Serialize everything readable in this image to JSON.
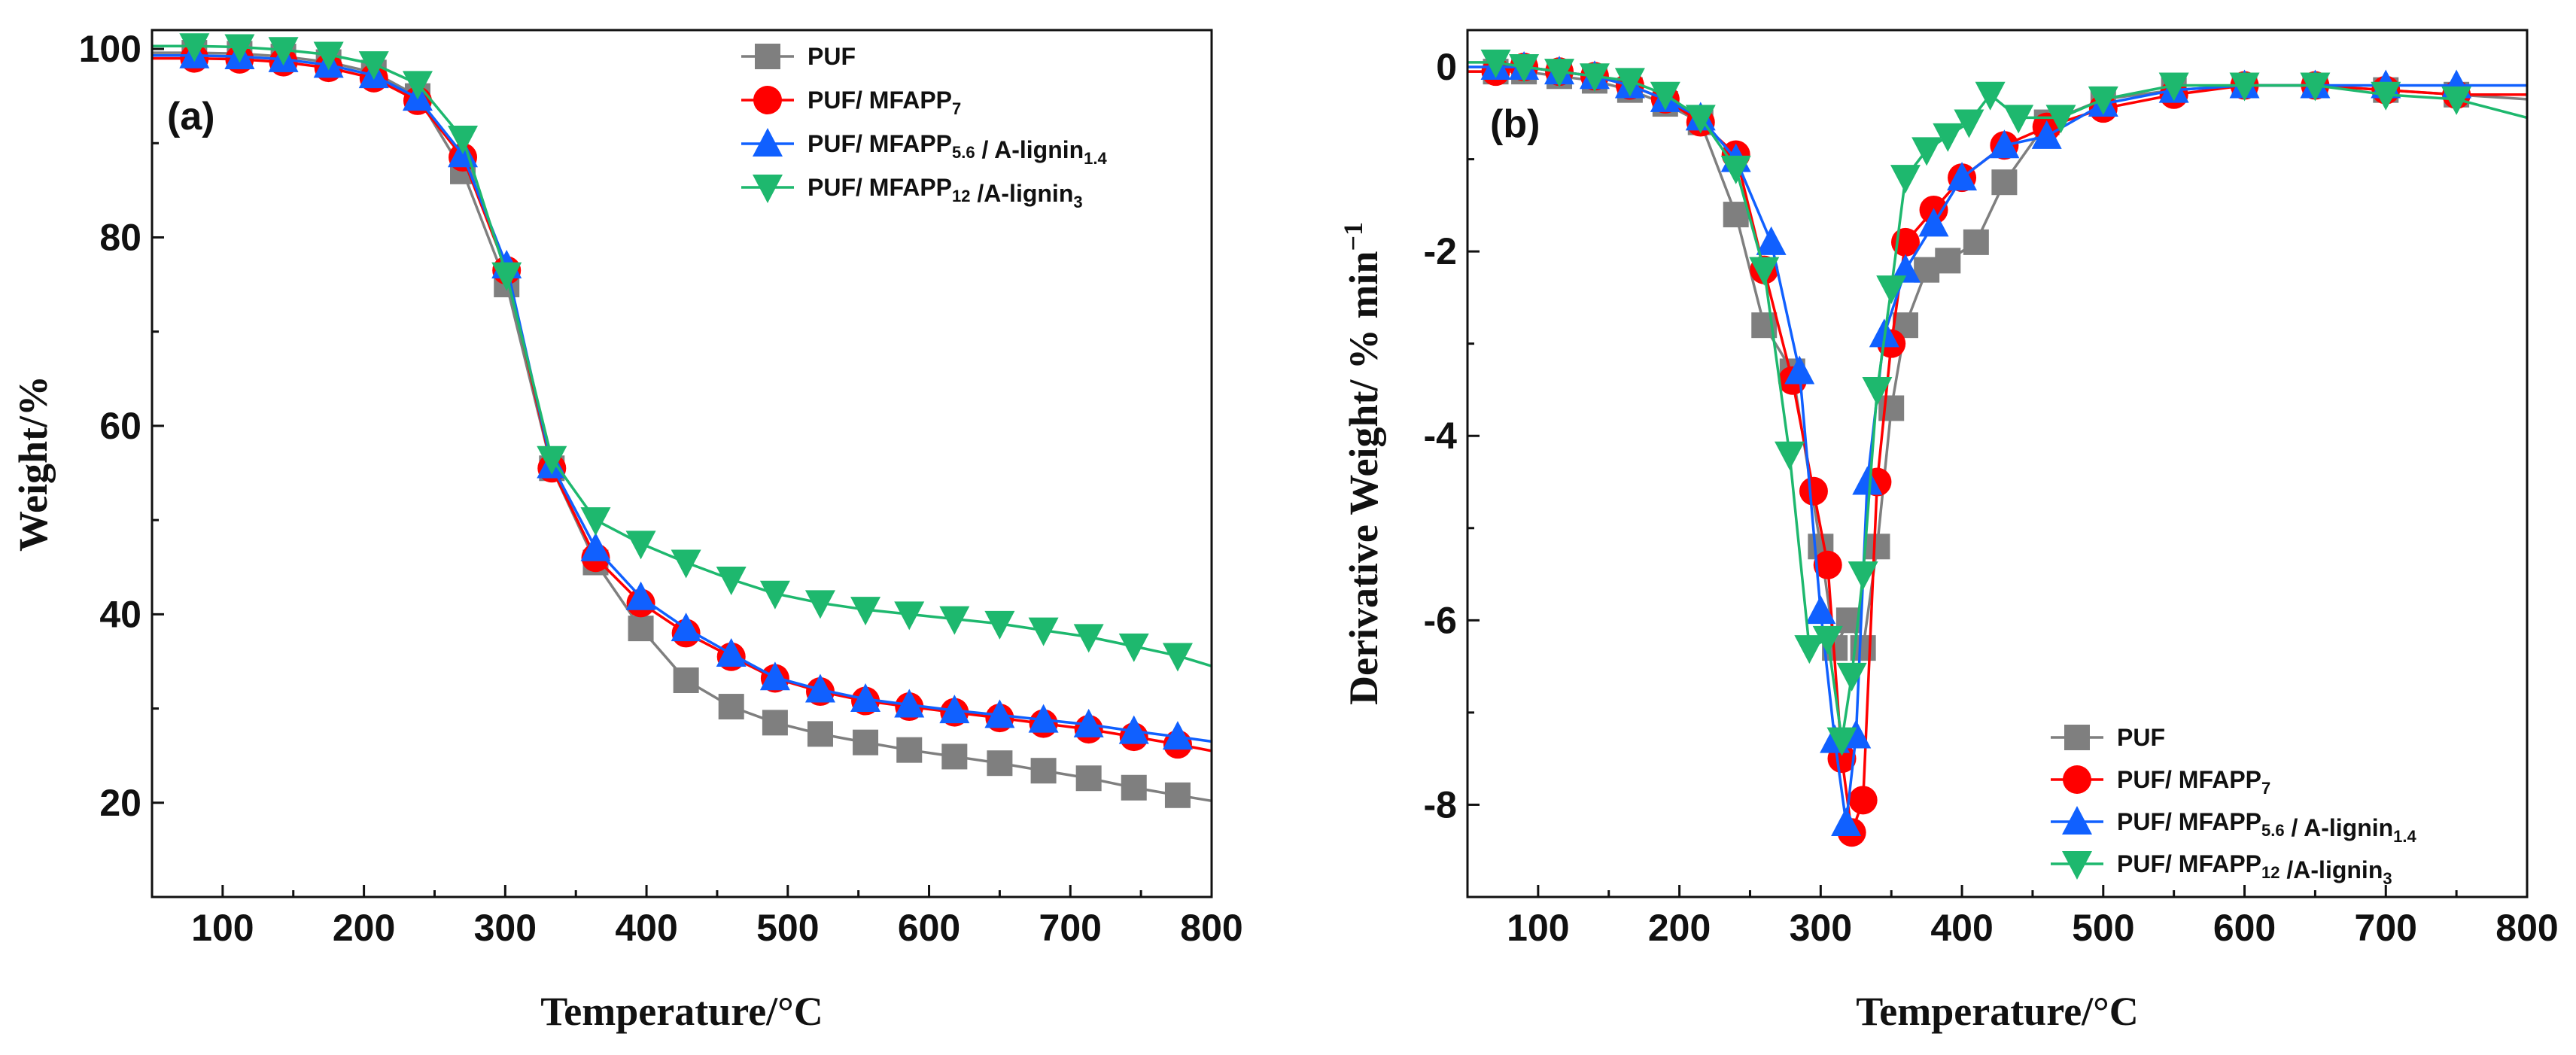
{
  "chart_data": [
    {
      "type": "line",
      "panel_label": "(a)",
      "xlabel": "Temperature/°C",
      "ylabel": "Weight/%",
      "xlim": [
        50,
        800
      ],
      "ylim": [
        10,
        102
      ],
      "xticks": [
        "100",
        "200",
        "300",
        "400",
        "500",
        "600",
        "700",
        "800"
      ],
      "xtick_values": [
        100,
        200,
        300,
        400,
        500,
        600,
        700,
        800
      ],
      "yticks": [
        "20",
        "40",
        "60",
        "80",
        "100"
      ],
      "ytick_values": [
        20,
        40,
        60,
        80,
        100
      ],
      "legend_position": "top-right",
      "series": [
        {
          "name": "PUF",
          "label_main": "PUF",
          "label_parts": [
            [
              "PUF",
              false
            ]
          ],
          "color": "#7f7f7f",
          "marker": "square",
          "x": [
            50,
            80,
            112,
            143,
            175,
            207,
            238,
            270,
            301,
            333,
            364,
            396,
            428,
            460,
            491,
            523,
            555,
            586,
            618,
            650,
            681,
            713,
            745,
            776,
            800
          ],
          "y": [
            99.6,
            99.6,
            99.5,
            99.2,
            98.6,
            97.5,
            95.0,
            87.0,
            75.0,
            55.5,
            45.5,
            38.5,
            33.0,
            30.2,
            28.5,
            27.3,
            26.4,
            25.6,
            24.9,
            24.2,
            23.4,
            22.6,
            21.6,
            20.8,
            20.2
          ]
        },
        {
          "name": "PUF/ MFAPP7",
          "label_parts": [
            [
              "PUF/ MFAPP",
              false
            ],
            [
              "7",
              true
            ]
          ],
          "color": "#ff0000",
          "marker": "circle",
          "x": [
            50,
            80,
            112,
            143,
            175,
            207,
            238,
            270,
            301,
            333,
            364,
            396,
            428,
            460,
            491,
            523,
            555,
            586,
            618,
            650,
            681,
            713,
            745,
            776,
            800
          ],
          "y": [
            99.0,
            99.0,
            98.9,
            98.6,
            98.0,
            96.9,
            94.5,
            88.5,
            76.5,
            55.5,
            46.0,
            41.2,
            38.0,
            35.5,
            33.2,
            31.8,
            30.8,
            30.2,
            29.6,
            29.0,
            28.4,
            27.8,
            27.0,
            26.2,
            25.5
          ]
        },
        {
          "name": "PUF/ MFAPP5.6 / A-lignin1.4",
          "label_parts": [
            [
              "PUF/ MFAPP",
              false
            ],
            [
              "5.6",
              true
            ],
            [
              " / A-lignin",
              false
            ],
            [
              "1.4",
              true
            ]
          ],
          "color": "#1060ff",
          "marker": "triangle-up",
          "x": [
            50,
            80,
            112,
            143,
            175,
            207,
            238,
            270,
            301,
            333,
            364,
            396,
            428,
            460,
            491,
            523,
            555,
            586,
            618,
            650,
            681,
            713,
            745,
            776,
            800
          ],
          "y": [
            99.3,
            99.3,
            99.2,
            98.9,
            98.3,
            97.2,
            94.8,
            88.8,
            77.0,
            55.8,
            47.0,
            41.8,
            38.5,
            35.8,
            33.3,
            32.0,
            31.0,
            30.4,
            29.8,
            29.3,
            28.8,
            28.3,
            27.6,
            27.0,
            26.5
          ]
        },
        {
          "name": "PUF/ MFAPP12 /A-lignin3",
          "label_parts": [
            [
              "PUF/ MFAPP",
              false
            ],
            [
              "12",
              true
            ],
            [
              " /A-lignin",
              false
            ],
            [
              "3",
              true
            ]
          ],
          "color": "#1eb86e",
          "marker": "triangle-down",
          "x": [
            50,
            80,
            112,
            143,
            175,
            207,
            238,
            270,
            301,
            333,
            364,
            396,
            428,
            460,
            491,
            523,
            555,
            586,
            618,
            650,
            681,
            713,
            745,
            776,
            800
          ],
          "y": [
            100.3,
            100.3,
            100.2,
            99.9,
            99.4,
            98.4,
            96.3,
            90.5,
            76.0,
            56.5,
            50.0,
            47.5,
            45.5,
            43.7,
            42.2,
            41.2,
            40.5,
            40.0,
            39.5,
            39.0,
            38.3,
            37.6,
            36.6,
            35.6,
            34.5
          ]
        }
      ]
    },
    {
      "type": "line",
      "panel_label": "(b)",
      "xlabel": "Temperature/°C",
      "ylabel": "Derivative Weight/ % min",
      "ylabel_sup": "−1",
      "xlim": [
        50,
        800
      ],
      "ylim": [
        -9,
        0.4
      ],
      "xticks": [
        "100",
        "200",
        "300",
        "400",
        "500",
        "600",
        "700",
        "800"
      ],
      "xtick_values": [
        100,
        200,
        300,
        400,
        500,
        600,
        700,
        800
      ],
      "yticks": [
        "0",
        "-2",
        "-4",
        "-6",
        "-8"
      ],
      "ytick_values": [
        0,
        -2,
        -4,
        -6,
        -8
      ],
      "legend_position": "bottom-right",
      "series": [
        {
          "name": "PUF",
          "label_parts": [
            [
              "PUF",
              false
            ]
          ],
          "color": "#7f7f7f",
          "marker": "square",
          "x": [
            50,
            70,
            90,
            115,
            140,
            165,
            190,
            215,
            240,
            260,
            280,
            300,
            310,
            320,
            330,
            340,
            350,
            360,
            375,
            390,
            410,
            430,
            460,
            500,
            550,
            600,
            650,
            700,
            750,
            800
          ],
          "y": [
            -0.05,
            -0.05,
            -0.05,
            -0.1,
            -0.15,
            -0.25,
            -0.4,
            -0.6,
            -1.6,
            -2.8,
            -3.3,
            -5.2,
            -6.3,
            -6.0,
            -6.3,
            -5.2,
            -3.7,
            -2.8,
            -2.2,
            -2.1,
            -1.9,
            -1.25,
            -0.6,
            -0.35,
            -0.25,
            -0.2,
            -0.2,
            -0.25,
            -0.3,
            -0.35
          ]
        },
        {
          "name": "PUF/ MFAPP7",
          "label_parts": [
            [
              "PUF/ MFAPP",
              false
            ],
            [
              "7",
              true
            ]
          ],
          "color": "#ff0000",
          "marker": "circle",
          "x": [
            50,
            70,
            90,
            115,
            140,
            165,
            190,
            215,
            240,
            260,
            280,
            295,
            305,
            315,
            322,
            330,
            340,
            350,
            360,
            380,
            400,
            430,
            460,
            500,
            550,
            600,
            650,
            700,
            750,
            800
          ],
          "y": [
            -0.05,
            -0.05,
            0.0,
            -0.05,
            -0.1,
            -0.2,
            -0.35,
            -0.6,
            -0.95,
            -2.2,
            -3.4,
            -4.6,
            -5.4,
            -7.5,
            -8.3,
            -7.95,
            -4.5,
            -3.0,
            -1.9,
            -1.55,
            -1.2,
            -0.85,
            -0.65,
            -0.45,
            -0.3,
            -0.2,
            -0.2,
            -0.25,
            -0.3,
            -0.3
          ]
        },
        {
          "name": "PUF/ MFAPP5.6 / A-lignin1.4",
          "label_parts": [
            [
              "PUF/ MFAPP",
              false
            ],
            [
              "5.6",
              true
            ],
            [
              " / A-lignin",
              false
            ],
            [
              "1.4",
              true
            ]
          ],
          "color": "#1060ff",
          "marker": "triangle-up",
          "x": [
            50,
            70,
            90,
            115,
            140,
            165,
            190,
            215,
            240,
            265,
            285,
            300,
            310,
            318,
            325,
            333,
            345,
            360,
            380,
            400,
            430,
            460,
            500,
            550,
            600,
            650,
            700,
            750,
            800
          ],
          "y": [
            0.0,
            0.0,
            0.0,
            -0.05,
            -0.1,
            -0.2,
            -0.35,
            -0.55,
            -1.0,
            -1.9,
            -3.3,
            -5.9,
            -7.3,
            -8.2,
            -7.25,
            -4.5,
            -2.9,
            -2.2,
            -1.7,
            -1.2,
            -0.85,
            -0.75,
            -0.4,
            -0.25,
            -0.2,
            -0.2,
            -0.2,
            -0.2,
            -0.2
          ]
        },
        {
          "name": "PUF/ MFAPP12 /A-lignin3",
          "label_parts": [
            [
              "PUF/ MFAPP",
              false
            ],
            [
              "12",
              true
            ],
            [
              " /A-lignin",
              false
            ],
            [
              "3",
              true
            ]
          ],
          "color": "#1eb86e",
          "marker": "triangle-down",
          "x": [
            50,
            70,
            90,
            115,
            140,
            165,
            190,
            215,
            240,
            260,
            278,
            292,
            305,
            315,
            322,
            330,
            340,
            350,
            360,
            375,
            390,
            405,
            420,
            440,
            470,
            500,
            550,
            600,
            650,
            700,
            750,
            800
          ],
          "y": [
            0.05,
            0.05,
            0.0,
            -0.05,
            -0.1,
            -0.15,
            -0.3,
            -0.55,
            -1.1,
            -2.2,
            -4.2,
            -6.3,
            -6.2,
            -7.3,
            -6.6,
            -5.5,
            -3.5,
            -2.4,
            -1.2,
            -0.9,
            -0.75,
            -0.6,
            -0.3,
            -0.55,
            -0.55,
            -0.35,
            -0.2,
            -0.2,
            -0.2,
            -0.3,
            -0.35,
            -0.55
          ]
        }
      ]
    }
  ]
}
